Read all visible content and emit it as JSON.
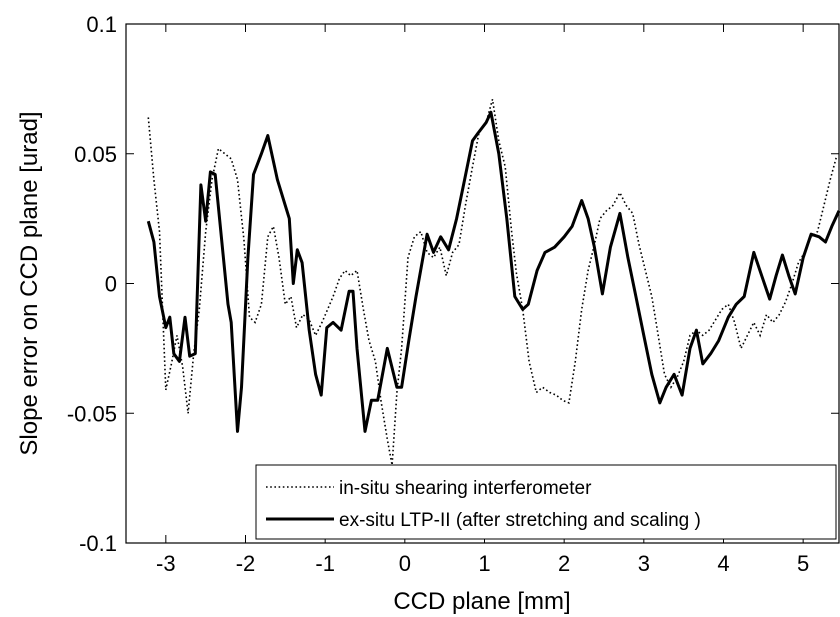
{
  "chart_data": {
    "type": "line",
    "title": "",
    "xlabel": "CCD plane [mm]",
    "ylabel": "Slope error on CCD plane [urad]",
    "xlim": [
      -3.5,
      5.45
    ],
    "ylim": [
      -0.1,
      0.1
    ],
    "x_ticks": [
      -3,
      -2,
      -1,
      0,
      1,
      2,
      3,
      4,
      5
    ],
    "x_tick_labels": [
      "-3",
      "-2",
      "-1",
      "0",
      "1",
      "2",
      "3",
      "4",
      "5"
    ],
    "y_ticks": [
      -0.1,
      -0.05,
      0,
      0.05,
      0.1
    ],
    "y_tick_labels": [
      "-0.1",
      "-0.05",
      "0",
      "0.05",
      "0.1"
    ],
    "grid": false,
    "legend_position": "bottom-right",
    "series": [
      {
        "name": "in-situ shearing interferometer",
        "style": "dotted",
        "color": "#000000",
        "points": [
          [
            -3.22,
            0.064
          ],
          [
            -3.15,
            0.04
          ],
          [
            -3.08,
            0.02
          ],
          [
            -3.0,
            -0.041
          ],
          [
            -2.93,
            -0.031
          ],
          [
            -2.86,
            -0.02
          ],
          [
            -2.79,
            -0.032
          ],
          [
            -2.72,
            -0.05
          ],
          [
            -2.65,
            -0.027
          ],
          [
            -2.58,
            -0.01
          ],
          [
            -2.5,
            0.02
          ],
          [
            -2.42,
            0.04
          ],
          [
            -2.34,
            0.052
          ],
          [
            -2.26,
            0.05
          ],
          [
            -2.18,
            0.048
          ],
          [
            -2.1,
            0.04
          ],
          [
            -2.02,
            0.017
          ],
          [
            -1.95,
            -0.013
          ],
          [
            -1.88,
            -0.015
          ],
          [
            -1.8,
            -0.008
          ],
          [
            -1.72,
            0.018
          ],
          [
            -1.65,
            0.022
          ],
          [
            -1.58,
            0.01
          ],
          [
            -1.5,
            -0.008
          ],
          [
            -1.43,
            -0.005
          ],
          [
            -1.36,
            -0.017
          ],
          [
            -1.28,
            -0.012
          ],
          [
            -1.2,
            -0.014
          ],
          [
            -1.12,
            -0.02
          ],
          [
            -1.04,
            -0.015
          ],
          [
            -0.97,
            -0.01
          ],
          [
            -0.9,
            -0.005
          ],
          [
            -0.82,
            0.002
          ],
          [
            -0.75,
            0.005
          ],
          [
            -0.68,
            0.003
          ],
          [
            -0.6,
            0.005
          ],
          [
            -0.52,
            -0.01
          ],
          [
            -0.45,
            -0.022
          ],
          [
            -0.37,
            -0.03
          ],
          [
            -0.3,
            -0.045
          ],
          [
            -0.22,
            -0.06
          ],
          [
            -0.16,
            -0.07
          ],
          [
            -0.1,
            -0.042
          ],
          [
            -0.04,
            -0.025
          ],
          [
            0.04,
            0.01
          ],
          [
            0.12,
            0.018
          ],
          [
            0.2,
            0.02
          ],
          [
            0.28,
            0.012
          ],
          [
            0.36,
            0.01
          ],
          [
            0.44,
            0.014
          ],
          [
            0.52,
            0.003
          ],
          [
            0.6,
            0.012
          ],
          [
            0.68,
            0.015
          ],
          [
            0.76,
            0.03
          ],
          [
            0.85,
            0.045
          ],
          [
            0.93,
            0.058
          ],
          [
            1.02,
            0.062
          ],
          [
            1.1,
            0.071
          ],
          [
            1.18,
            0.055
          ],
          [
            1.26,
            0.045
          ],
          [
            1.34,
            0.02
          ],
          [
            1.4,
            0.004
          ],
          [
            1.48,
            -0.01
          ],
          [
            1.56,
            -0.03
          ],
          [
            1.65,
            -0.042
          ],
          [
            1.73,
            -0.04
          ],
          [
            1.82,
            -0.042
          ],
          [
            1.9,
            -0.043
          ],
          [
            1.98,
            -0.045
          ],
          [
            2.06,
            -0.046
          ],
          [
            2.14,
            -0.03
          ],
          [
            2.22,
            -0.01
          ],
          [
            2.3,
            0.005
          ],
          [
            2.38,
            0.015
          ],
          [
            2.45,
            0.025
          ],
          [
            2.53,
            0.028
          ],
          [
            2.61,
            0.03
          ],
          [
            2.7,
            0.035
          ],
          [
            2.78,
            0.03
          ],
          [
            2.86,
            0.027
          ],
          [
            2.94,
            0.015
          ],
          [
            3.02,
            0.005
          ],
          [
            3.1,
            -0.005
          ],
          [
            3.18,
            -0.02
          ],
          [
            3.26,
            -0.035
          ],
          [
            3.34,
            -0.04
          ],
          [
            3.42,
            -0.036
          ],
          [
            3.5,
            -0.03
          ],
          [
            3.58,
            -0.02
          ],
          [
            3.66,
            -0.018
          ],
          [
            3.74,
            -0.02
          ],
          [
            3.82,
            -0.018
          ],
          [
            3.9,
            -0.014
          ],
          [
            3.98,
            -0.01
          ],
          [
            4.06,
            -0.008
          ],
          [
            4.14,
            -0.015
          ],
          [
            4.22,
            -0.025
          ],
          [
            4.3,
            -0.02
          ],
          [
            4.38,
            -0.015
          ],
          [
            4.46,
            -0.02
          ],
          [
            4.54,
            -0.012
          ],
          [
            4.62,
            -0.015
          ],
          [
            4.7,
            -0.012
          ],
          [
            4.78,
            -0.007
          ],
          [
            4.86,
            0.0
          ],
          [
            4.94,
            0.008
          ],
          [
            5.02,
            0.012
          ],
          [
            5.1,
            0.018
          ],
          [
            5.18,
            0.02
          ],
          [
            5.26,
            0.03
          ],
          [
            5.34,
            0.04
          ],
          [
            5.42,
            0.049
          ]
        ]
      },
      {
        "name": "ex-situ LTP-II (after stretching and scaling )",
        "style": "solid",
        "color": "#000000",
        "points": [
          [
            -3.22,
            0.024
          ],
          [
            -3.15,
            0.016
          ],
          [
            -3.08,
            -0.005
          ],
          [
            -3.0,
            -0.017
          ],
          [
            -2.95,
            -0.013
          ],
          [
            -2.9,
            -0.027
          ],
          [
            -2.83,
            -0.03
          ],
          [
            -2.76,
            -0.013
          ],
          [
            -2.7,
            -0.028
          ],
          [
            -2.63,
            -0.027
          ],
          [
            -2.56,
            0.038
          ],
          [
            -2.5,
            0.024
          ],
          [
            -2.44,
            0.043
          ],
          [
            -2.38,
            0.042
          ],
          [
            -2.3,
            0.017
          ],
          [
            -2.22,
            -0.008
          ],
          [
            -2.18,
            -0.015
          ],
          [
            -2.1,
            -0.057
          ],
          [
            -2.05,
            -0.04
          ],
          [
            -1.97,
            0.01
          ],
          [
            -1.9,
            0.042
          ],
          [
            -1.8,
            0.05
          ],
          [
            -1.72,
            0.057
          ],
          [
            -1.6,
            0.04
          ],
          [
            -1.5,
            0.03
          ],
          [
            -1.45,
            0.025
          ],
          [
            -1.4,
            0.0
          ],
          [
            -1.35,
            0.013
          ],
          [
            -1.29,
            0.008
          ],
          [
            -1.2,
            -0.018
          ],
          [
            -1.12,
            -0.035
          ],
          [
            -1.05,
            -0.043
          ],
          [
            -0.98,
            -0.017
          ],
          [
            -0.9,
            -0.015
          ],
          [
            -0.8,
            -0.018
          ],
          [
            -0.7,
            -0.003
          ],
          [
            -0.65,
            -0.003
          ],
          [
            -0.6,
            -0.025
          ],
          [
            -0.5,
            -0.057
          ],
          [
            -0.42,
            -0.045
          ],
          [
            -0.34,
            -0.045
          ],
          [
            -0.22,
            -0.025
          ],
          [
            -0.1,
            -0.04
          ],
          [
            -0.04,
            -0.04
          ],
          [
            0.05,
            -0.022
          ],
          [
            0.14,
            -0.005
          ],
          [
            0.28,
            0.019
          ],
          [
            0.36,
            0.012
          ],
          [
            0.45,
            0.018
          ],
          [
            0.55,
            0.013
          ],
          [
            0.65,
            0.025
          ],
          [
            0.75,
            0.04
          ],
          [
            0.85,
            0.055
          ],
          [
            0.92,
            0.058
          ],
          [
            1.02,
            0.062
          ],
          [
            1.08,
            0.066
          ],
          [
            1.18,
            0.05
          ],
          [
            1.28,
            0.025
          ],
          [
            1.38,
            -0.005
          ],
          [
            1.48,
            -0.01
          ],
          [
            1.55,
            -0.008
          ],
          [
            1.66,
            0.005
          ],
          [
            1.76,
            0.012
          ],
          [
            1.88,
            0.014
          ],
          [
            2.0,
            0.018
          ],
          [
            2.1,
            0.022
          ],
          [
            2.22,
            0.032
          ],
          [
            2.3,
            0.025
          ],
          [
            2.38,
            0.014
          ],
          [
            2.48,
            -0.004
          ],
          [
            2.58,
            0.014
          ],
          [
            2.7,
            0.027
          ],
          [
            2.8,
            0.01
          ],
          [
            2.9,
            -0.005
          ],
          [
            3.0,
            -0.02
          ],
          [
            3.1,
            -0.035
          ],
          [
            3.2,
            -0.046
          ],
          [
            3.28,
            -0.04
          ],
          [
            3.38,
            -0.035
          ],
          [
            3.48,
            -0.043
          ],
          [
            3.58,
            -0.025
          ],
          [
            3.66,
            -0.018
          ],
          [
            3.74,
            -0.031
          ],
          [
            3.84,
            -0.027
          ],
          [
            3.94,
            -0.022
          ],
          [
            4.06,
            -0.013
          ],
          [
            4.16,
            -0.008
          ],
          [
            4.26,
            -0.005
          ],
          [
            4.38,
            0.012
          ],
          [
            4.48,
            0.003
          ],
          [
            4.58,
            -0.006
          ],
          [
            4.66,
            0.003
          ],
          [
            4.74,
            0.011
          ],
          [
            4.82,
            0.003
          ],
          [
            4.9,
            -0.004
          ],
          [
            5.0,
            0.01
          ],
          [
            5.1,
            0.019
          ],
          [
            5.2,
            0.018
          ],
          [
            5.28,
            0.016
          ],
          [
            5.36,
            0.022
          ],
          [
            5.45,
            0.028
          ]
        ]
      }
    ]
  }
}
